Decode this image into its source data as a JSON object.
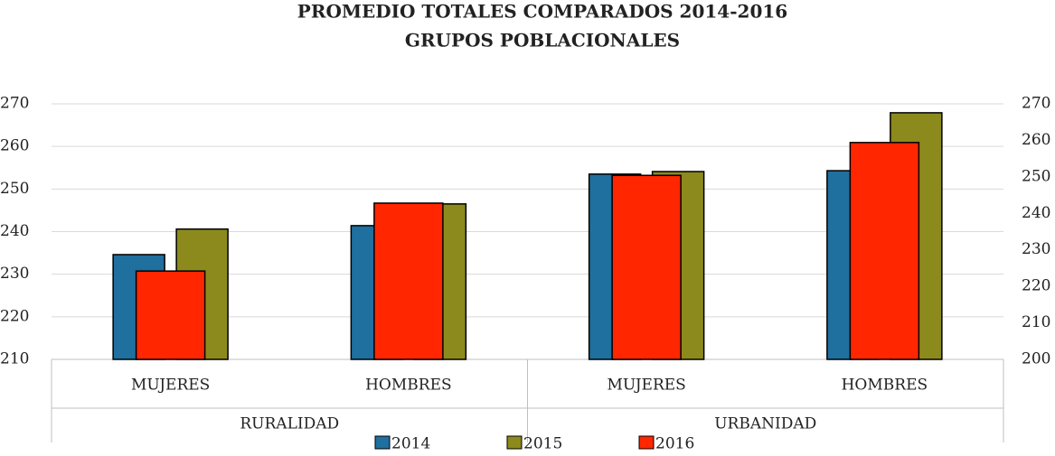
{
  "chart_data": {
    "type": "bar",
    "title": "PROMEDIO TOTALES COMPARADOS 2014-2016",
    "subtitle": "GRUPOS POBLACIONALES",
    "categories": [
      "MUJERES",
      "HOMBRES",
      "MUJERES",
      "HOMBRES"
    ],
    "groups": [
      "RURALIDAD",
      "URBANIDAD"
    ],
    "series": [
      {
        "name": "2014",
        "color": "#1f6f9f",
        "values": [
          234.6,
          241.4,
          253.5,
          254.3
        ]
      },
      {
        "name": "2015",
        "color": "#8c8a1c",
        "values": [
          240.6,
          246.5,
          254.1,
          267.9
        ]
      },
      {
        "name": "2016",
        "color": "#ff2600",
        "axis": "y2",
        "values": [
          224.2,
          242.8,
          250.4,
          259.4
        ]
      }
    ],
    "ylim": [
      210,
      270
    ],
    "yticks": [
      210,
      220,
      230,
      240,
      250,
      260,
      270
    ],
    "y2lim": [
      200,
      270
    ],
    "y2ticks": [
      200,
      210,
      220,
      230,
      240,
      250,
      260,
      270
    ],
    "grid": true,
    "legend": "bottom"
  }
}
